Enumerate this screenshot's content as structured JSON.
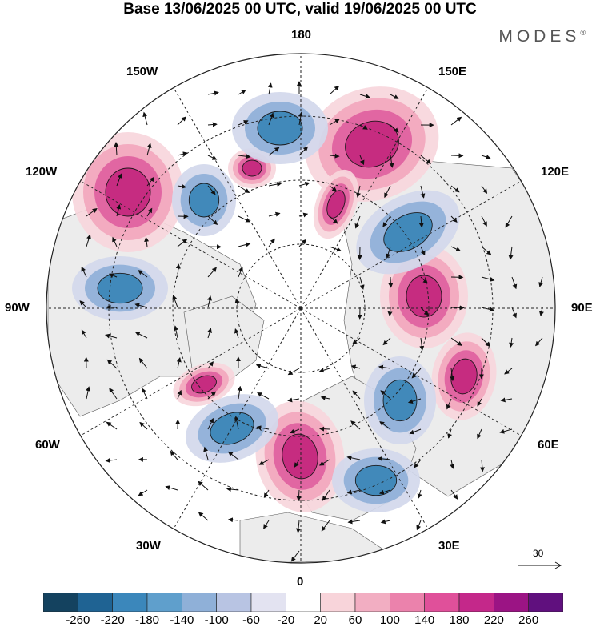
{
  "header": {
    "title": "Base 13/06/2025 00 UTC, valid 19/06/2025 00 UTC",
    "brand": "MODES",
    "brand_mark": "®"
  },
  "map": {
    "projection": "north-polar-stereographic",
    "longitude_labels": {
      "top": "180",
      "bottom": "0",
      "left": "90W",
      "right": "90E",
      "upper_left_1": "150W",
      "upper_left_2": "120W",
      "upper_right_1": "150E",
      "upper_right_2": "120E",
      "lower_left_1": "60W",
      "lower_left_2": "30W",
      "lower_right_1": "60E",
      "lower_right_2": "30E"
    },
    "reference_vector_label": "30",
    "colors": {
      "neg_strong": "#3a86b8",
      "neg_mid": "#8fb0d8",
      "neg_weak": "#d2d8ec",
      "pos_weak": "#f7d6dc",
      "pos_mid": "#f2a7bd",
      "pos_strong": "#e060a0",
      "pos_peak": "#c4287e",
      "land": "#ececec"
    }
  },
  "colorbar": {
    "colors": [
      "#14425f",
      "#1f6393",
      "#3b87bb",
      "#5f9fcc",
      "#8fb0d8",
      "#b8c4e3",
      "#e3e3f1",
      "#ffffff",
      "#f8d4da",
      "#f2aec2",
      "#eb82ac",
      "#e0509a",
      "#c4288a",
      "#9b1484",
      "#60107e"
    ],
    "tick_labels": [
      "-260",
      "-220",
      "-180",
      "-140",
      "-100",
      "-60",
      "-20",
      "20",
      "60",
      "100",
      "140",
      "180",
      "220",
      "260"
    ]
  }
}
